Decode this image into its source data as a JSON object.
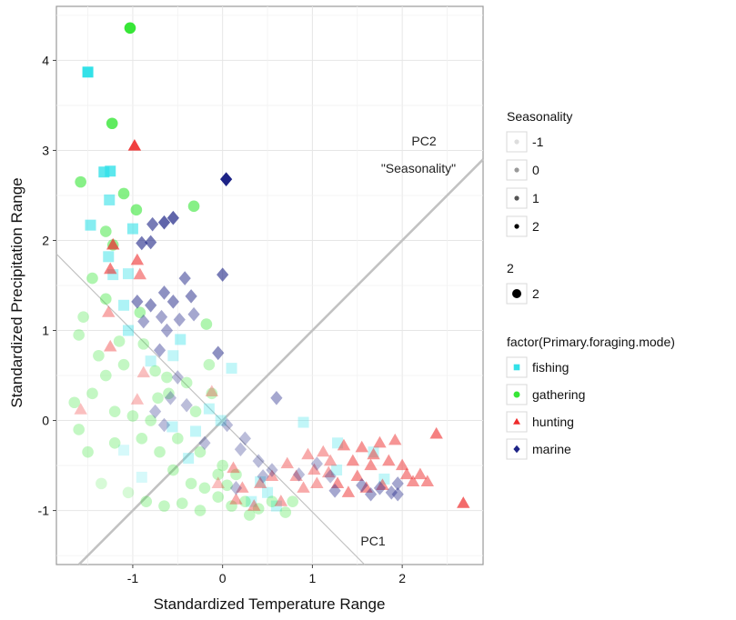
{
  "chart_data": {
    "type": "scatter",
    "xlabel": "Standardized Temperature Range",
    "ylabel": "Standardized Precipitation Range",
    "xlim": [
      -1.85,
      2.9
    ],
    "ylim": [
      -1.6,
      4.6
    ],
    "x_ticks": [
      -1,
      0,
      1,
      2
    ],
    "y_ticks": [
      -1,
      0,
      1,
      2,
      3,
      4
    ],
    "x_tick_labels": [
      "-1",
      "0",
      "1",
      "2"
    ],
    "y_tick_labels": [
      "-1",
      "0",
      "1",
      "2",
      "3",
      "4"
    ],
    "grid": true,
    "legend_position": "right",
    "colors": {
      "fishing": "#33E1E8",
      "gathering": "#37E637",
      "hunting": "#EE2B2B",
      "marine": "#1D2386",
      "panel_border": "#9a9a9a",
      "grid": "#e6e6e6",
      "annotation_line": "#c2c2c2"
    },
    "annotations": {
      "pc1_label": "PC1",
      "pc2_label": "PC2",
      "pc2_sublabel": "\"Seasonality\"",
      "pc1_line": [
        [
          -1.85,
          1.85
        ],
        [
          1.58,
          -1.6
        ]
      ],
      "pc2_line": [
        [
          -1.6,
          -1.6
        ],
        [
          2.9,
          2.9
        ]
      ]
    },
    "legends": {
      "seasonality": {
        "title": "Seasonality",
        "entries": [
          {
            "label": "-1",
            "color": "#dddddd"
          },
          {
            "label": "0",
            "color": "#999999"
          },
          {
            "label": "1",
            "color": "#555555"
          },
          {
            "label": "2",
            "color": "#000000"
          }
        ]
      },
      "size": {
        "title": "2",
        "entries": [
          {
            "label": "2"
          }
        ]
      },
      "mode": {
        "title": "factor(Primary.foraging.mode)",
        "entries": [
          {
            "label": "fishing",
            "shape": "square",
            "color": "#33E1E8"
          },
          {
            "label": "gathering",
            "shape": "circle",
            "color": "#37E637"
          },
          {
            "label": "hunting",
            "shape": "triangle",
            "color": "#EE2B2B"
          },
          {
            "label": "marine",
            "shape": "diamond",
            "color": "#1D2386"
          }
        ]
      }
    },
    "series": [
      {
        "name": "fishing",
        "shape": "square",
        "points": [
          [
            -1.5,
            3.87,
            1.0
          ],
          [
            -1.32,
            2.76,
            0.8
          ],
          [
            -1.25,
            2.77,
            0.8
          ],
          [
            -1.26,
            2.45,
            0.6
          ],
          [
            -1.47,
            2.17,
            0.6
          ],
          [
            -1.0,
            2.13,
            0.6
          ],
          [
            -1.27,
            1.82,
            0.5
          ],
          [
            -1.22,
            1.62,
            0.4
          ],
          [
            -1.05,
            1.63,
            0.4
          ],
          [
            -1.1,
            1.28,
            0.4
          ],
          [
            -1.05,
            1.0,
            0.4
          ],
          [
            -0.8,
            0.66,
            0.3
          ],
          [
            -0.47,
            0.9,
            0.4
          ],
          [
            -0.55,
            0.72,
            0.3
          ],
          [
            0.1,
            0.58,
            0.3
          ],
          [
            -0.15,
            0.13,
            0.3
          ],
          [
            -0.02,
            0.0,
            0.3
          ],
          [
            -0.56,
            -0.07,
            0.3
          ],
          [
            -0.3,
            -0.12,
            0.3
          ],
          [
            -0.38,
            -0.42,
            0.3
          ],
          [
            -1.1,
            -0.33,
            0.2
          ],
          [
            -0.9,
            -0.63,
            0.2
          ],
          [
            0.9,
            -0.02,
            0.3
          ],
          [
            1.28,
            -0.25,
            0.3
          ],
          [
            1.27,
            -0.55,
            0.3
          ],
          [
            1.68,
            -0.35,
            0.3
          ],
          [
            1.8,
            -0.65,
            0.3
          ],
          [
            0.5,
            -0.8,
            0.3
          ],
          [
            0.32,
            -0.9,
            0.3
          ],
          [
            0.6,
            -0.95,
            0.3
          ],
          [
            0.42,
            -0.68,
            0.3
          ]
        ]
      },
      {
        "name": "gathering",
        "shape": "circle",
        "points": [
          [
            -1.03,
            4.36,
            1.0
          ],
          [
            -1.23,
            3.3,
            0.8
          ],
          [
            -1.1,
            2.52,
            0.6
          ],
          [
            -1.58,
            2.65,
            0.6
          ],
          [
            -0.96,
            2.34,
            0.6
          ],
          [
            -0.32,
            2.38,
            0.6
          ],
          [
            -1.3,
            2.1,
            0.5
          ],
          [
            -1.22,
            1.95,
            0.5
          ],
          [
            -1.45,
            1.58,
            0.4
          ],
          [
            -1.3,
            1.35,
            0.4
          ],
          [
            -1.55,
            1.15,
            0.3
          ],
          [
            -1.6,
            0.95,
            0.3
          ],
          [
            -1.15,
            0.88,
            0.3
          ],
          [
            -0.92,
            1.2,
            0.4
          ],
          [
            -0.18,
            1.07,
            0.4
          ],
          [
            -0.75,
            0.55,
            0.3
          ],
          [
            -0.62,
            0.48,
            0.3
          ],
          [
            -0.4,
            0.42,
            0.3
          ],
          [
            -0.15,
            0.62,
            0.3
          ],
          [
            -1.3,
            0.5,
            0.3
          ],
          [
            -1.45,
            0.3,
            0.3
          ],
          [
            -1.65,
            0.2,
            0.3
          ],
          [
            -1.2,
            0.1,
            0.3
          ],
          [
            -1.0,
            0.05,
            0.3
          ],
          [
            -0.8,
            0.0,
            0.3
          ],
          [
            -0.9,
            -0.2,
            0.3
          ],
          [
            -1.2,
            -0.25,
            0.3
          ],
          [
            -1.5,
            -0.35,
            0.3
          ],
          [
            -1.6,
            -0.1,
            0.3
          ],
          [
            -0.7,
            -0.35,
            0.3
          ],
          [
            -0.55,
            -0.55,
            0.3
          ],
          [
            -0.35,
            -0.7,
            0.3
          ],
          [
            -0.2,
            -0.75,
            0.3
          ],
          [
            -0.05,
            -0.85,
            0.3
          ],
          [
            0.1,
            -0.95,
            0.3
          ],
          [
            0.25,
            -0.9,
            0.3
          ],
          [
            0.4,
            -0.98,
            0.3
          ],
          [
            0.55,
            -0.9,
            0.3
          ],
          [
            0.7,
            -1.02,
            0.3
          ],
          [
            0.78,
            -0.9,
            0.3
          ],
          [
            -0.85,
            -0.9,
            0.3
          ],
          [
            -0.65,
            -0.95,
            0.3
          ],
          [
            -0.45,
            -0.92,
            0.3
          ],
          [
            -0.25,
            -1.0,
            0.3
          ],
          [
            -1.05,
            -0.8,
            0.2
          ],
          [
            -1.35,
            -0.7,
            0.2
          ],
          [
            -0.5,
            -0.2,
            0.3
          ],
          [
            0.0,
            -0.5,
            0.3
          ],
          [
            0.05,
            -0.72,
            0.3
          ],
          [
            -0.05,
            -0.6,
            0.3
          ],
          [
            0.3,
            -1.05,
            0.3
          ],
          [
            0.15,
            -0.6,
            0.3
          ],
          [
            -0.72,
            0.25,
            0.3
          ],
          [
            -0.3,
            0.1,
            0.3
          ],
          [
            -0.12,
            0.3,
            0.3
          ],
          [
            -1.1,
            0.62,
            0.3
          ],
          [
            -1.38,
            0.72,
            0.3
          ],
          [
            -0.88,
            0.85,
            0.3
          ],
          [
            -0.6,
            0.3,
            0.3
          ],
          [
            -0.25,
            -0.35,
            0.3
          ]
        ]
      },
      {
        "name": "hunting",
        "shape": "triangle",
        "points": [
          [
            -0.98,
            3.05,
            0.9
          ],
          [
            -1.22,
            1.95,
            0.7
          ],
          [
            -0.95,
            1.78,
            0.6
          ],
          [
            -1.25,
            1.68,
            0.6
          ],
          [
            -0.92,
            1.62,
            0.5
          ],
          [
            -1.27,
            1.2,
            0.4
          ],
          [
            -1.25,
            0.82,
            0.4
          ],
          [
            -0.88,
            0.53,
            0.3
          ],
          [
            -0.95,
            0.23,
            0.3
          ],
          [
            -1.58,
            0.12,
            0.3
          ],
          [
            -0.12,
            0.32,
            0.3
          ],
          [
            0.12,
            -0.53,
            0.4
          ],
          [
            0.22,
            -0.75,
            0.4
          ],
          [
            0.42,
            -0.7,
            0.4
          ],
          [
            0.55,
            -0.62,
            0.4
          ],
          [
            0.72,
            -0.48,
            0.4
          ],
          [
            0.82,
            -0.62,
            0.4
          ],
          [
            0.95,
            -0.38,
            0.4
          ],
          [
            1.02,
            -0.55,
            0.4
          ],
          [
            1.12,
            -0.35,
            0.4
          ],
          [
            1.18,
            -0.58,
            0.4
          ],
          [
            1.35,
            -0.28,
            0.5
          ],
          [
            1.45,
            -0.45,
            0.5
          ],
          [
            1.5,
            -0.62,
            0.5
          ],
          [
            1.55,
            -0.3,
            0.5
          ],
          [
            1.65,
            -0.5,
            0.5
          ],
          [
            1.75,
            -0.25,
            0.5
          ],
          [
            1.85,
            -0.45,
            0.5
          ],
          [
            1.92,
            -0.22,
            0.5
          ],
          [
            2.05,
            -0.6,
            0.5
          ],
          [
            2.12,
            -0.68,
            0.5
          ],
          [
            2.2,
            -0.6,
            0.5
          ],
          [
            2.28,
            -0.68,
            0.5
          ],
          [
            2.38,
            -0.15,
            0.6
          ],
          [
            2.68,
            -0.92,
            0.7
          ],
          [
            1.28,
            -0.7,
            0.5
          ],
          [
            1.4,
            -0.8,
            0.5
          ],
          [
            1.6,
            -0.75,
            0.5
          ],
          [
            1.78,
            -0.72,
            0.5
          ],
          [
            0.9,
            -0.75,
            0.4
          ],
          [
            0.65,
            -0.9,
            0.4
          ],
          [
            0.35,
            -0.95,
            0.4
          ],
          [
            0.15,
            -0.88,
            0.4
          ],
          [
            -0.05,
            -0.7,
            0.3
          ],
          [
            1.05,
            -0.7,
            0.4
          ],
          [
            1.2,
            -0.45,
            0.4
          ],
          [
            1.68,
            -0.38,
            0.5
          ],
          [
            2.0,
            -0.5,
            0.5
          ]
        ]
      },
      {
        "name": "marine",
        "shape": "diamond",
        "points": [
          [
            0.04,
            2.68,
            1.0
          ],
          [
            -0.55,
            2.25,
            0.7
          ],
          [
            -0.65,
            2.2,
            0.7
          ],
          [
            -0.78,
            2.18,
            0.6
          ],
          [
            -0.9,
            1.97,
            0.6
          ],
          [
            -0.8,
            1.98,
            0.6
          ],
          [
            0.0,
            1.62,
            0.6
          ],
          [
            -0.42,
            1.58,
            0.5
          ],
          [
            -0.55,
            1.32,
            0.5
          ],
          [
            -0.65,
            1.42,
            0.5
          ],
          [
            -0.35,
            1.38,
            0.5
          ],
          [
            -0.8,
            1.28,
            0.5
          ],
          [
            -0.68,
            1.15,
            0.4
          ],
          [
            -0.48,
            1.12,
            0.4
          ],
          [
            -0.32,
            1.18,
            0.4
          ],
          [
            -0.62,
            1.0,
            0.4
          ],
          [
            -0.95,
            1.32,
            0.5
          ],
          [
            -0.88,
            1.1,
            0.4
          ],
          [
            -0.05,
            0.75,
            0.5
          ],
          [
            -0.7,
            0.78,
            0.4
          ],
          [
            -0.5,
            0.48,
            0.3
          ],
          [
            -0.58,
            0.25,
            0.3
          ],
          [
            -0.4,
            0.17,
            0.3
          ],
          [
            -0.75,
            0.1,
            0.3
          ],
          [
            -0.65,
            -0.05,
            0.3
          ],
          [
            0.2,
            -0.32,
            0.3
          ],
          [
            0.25,
            -0.2,
            0.3
          ],
          [
            0.4,
            -0.45,
            0.3
          ],
          [
            0.45,
            -0.62,
            0.3
          ],
          [
            0.55,
            -0.55,
            0.3
          ],
          [
            0.6,
            0.25,
            0.4
          ],
          [
            0.85,
            -0.6,
            0.3
          ],
          [
            1.05,
            -0.48,
            0.3
          ],
          [
            1.2,
            -0.62,
            0.3
          ],
          [
            1.25,
            -0.78,
            0.4
          ],
          [
            1.55,
            -0.72,
            0.4
          ],
          [
            1.65,
            -0.82,
            0.4
          ],
          [
            1.75,
            -0.75,
            0.4
          ],
          [
            1.88,
            -0.8,
            0.4
          ],
          [
            1.95,
            -0.82,
            0.4
          ],
          [
            1.95,
            -0.7,
            0.4
          ],
          [
            -0.2,
            -0.25,
            0.3
          ],
          [
            0.05,
            -0.05,
            0.3
          ],
          [
            0.15,
            -0.75,
            0.3
          ]
        ]
      }
    ]
  }
}
